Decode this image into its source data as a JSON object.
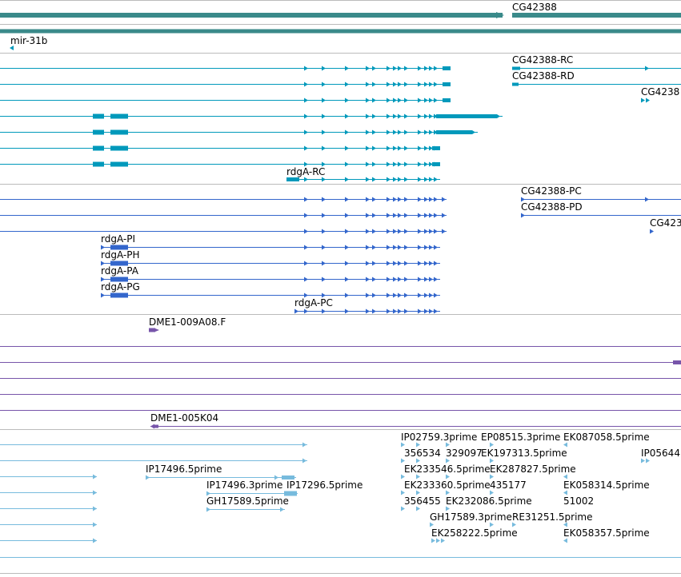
{
  "colors": {
    "gene": "#3a8a8a",
    "rna": "#0099bb",
    "protein": "#3366cc",
    "clone": "#7755aa",
    "est": "#77bbdd",
    "separator": "#bbbbbb"
  },
  "labels": {
    "gene_cg42388": "CG42388",
    "mir31b": "mir-31b",
    "cg42388_rc": "CG42388-RC",
    "cg42388_rd": "CG42388-RD",
    "cg4238_trunc": "CG4238",
    "rdga_rc": "rdgA-RC",
    "cg42388_pc": "CG42388-PC",
    "cg42388_pd": "CG42388-PD",
    "cg423_trunc": "CG423",
    "rdga_pi": "rdgA-PI",
    "rdga_ph": "rdgA-PH",
    "rdga_pa": "rdgA-PA",
    "rdga_pg": "rdgA-PG",
    "rdga_pc": "rdgA-PC",
    "dme1_009a08": "DME1-009A08.F",
    "dme1_005k04": "DME1-005K04",
    "ip02759": "IP02759.3prime",
    "ep08515": "EP08515.3prime",
    "ek087058": "EK087058.5prime",
    "r356534": "356534",
    "r329097": "329097",
    "ek197313": "EK197313.5prime",
    "ip05644": "IP05644",
    "ip17496_5": "IP17496.5prime",
    "ek233546": "EK233546.5prime",
    "ek287827": "EK287827.5prime",
    "ip17496_3": "IP17496.3prime",
    "ip17296": "IP17296.5prime",
    "ek233360": "EK233360.5prime",
    "r435177": "435177",
    "ek058314": "EK058314.5prime",
    "gh17589_5": "GH17589.5prime",
    "r356455": "356455",
    "ek232086": "EK232086.5prime",
    "r51002": "51002",
    "gh17589_3": "GH17589.3prime",
    "re31251": "RE31251.5prime",
    "ek258222": "EK258222.5prime",
    "ek058357": "EK058357.5prime"
  }
}
